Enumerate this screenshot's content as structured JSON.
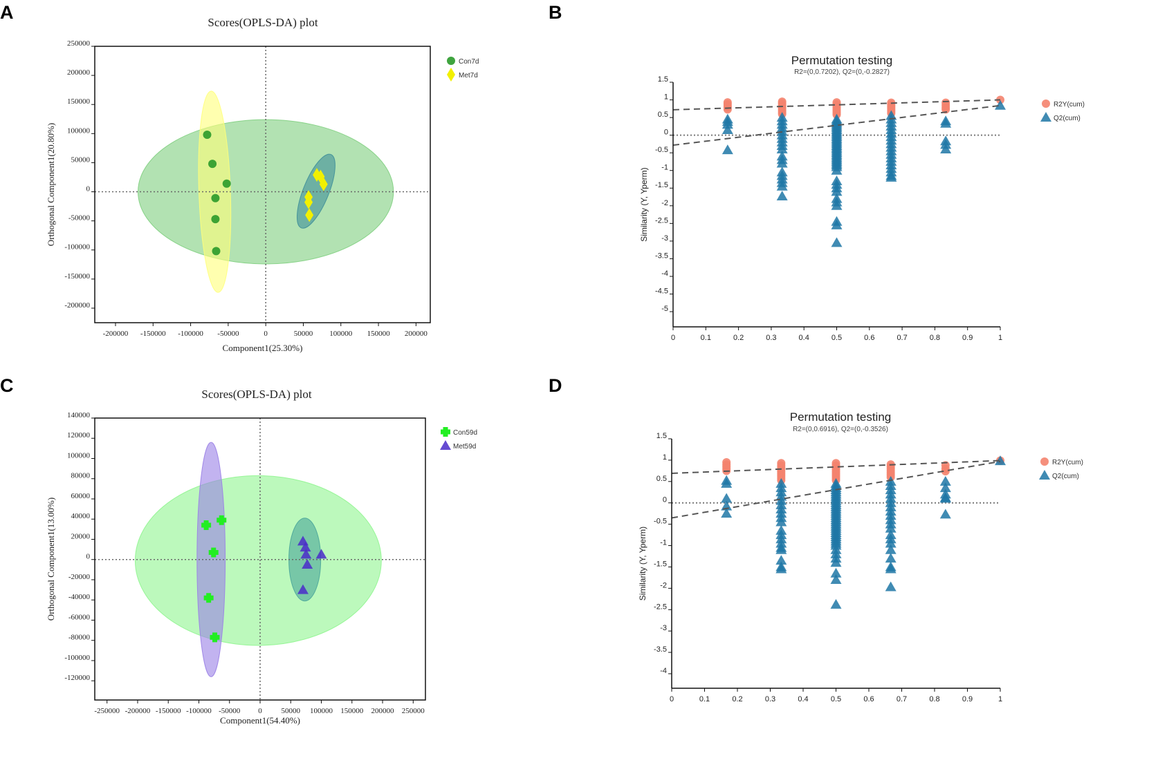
{
  "panel_labels": [
    "A",
    "B",
    "C",
    "D"
  ],
  "chart_data": [
    {
      "panel": "A",
      "type": "scatter",
      "title": "Scores(OPLS-DA) plot",
      "xlabel": "Component1(25.30%)",
      "ylabel": "Orthogonal Component1(20.80%)",
      "xlim": [
        -227600,
        219000
      ],
      "ylim": [
        -225000,
        250000
      ],
      "xticks": [
        -200000,
        -150000,
        -100000,
        -50000,
        0,
        50000,
        100000,
        150000,
        200000
      ],
      "yticks": [
        -200000,
        -150000,
        -100000,
        -50000,
        0,
        50000,
        100000,
        150000,
        200000,
        250000
      ],
      "reference_lines": {
        "x": 0,
        "y": 0,
        "style": "dotted"
      },
      "legend_position": "right",
      "ellipses": [
        {
          "cx": 0,
          "cy": 0,
          "rx": 170000,
          "ry": 124000,
          "angle_deg": 0,
          "color": "#7fcf7f"
        },
        {
          "cx": -68000,
          "cy": 0,
          "rx": 21000,
          "ry": 173000,
          "angle_deg": -2,
          "color": "#ffff7a"
        },
        {
          "cx": 67000,
          "cy": 1000,
          "rx": 17000,
          "ry": 68000,
          "angle_deg": 22,
          "color": "#3f8f99"
        }
      ],
      "series": [
        {
          "name": "Con7d",
          "marker": "circle",
          "color": "#2a9a2a",
          "points": [
            [
              -78000,
              98000
            ],
            [
              -71000,
              48000
            ],
            [
              -52000,
              14000
            ],
            [
              -67000,
              -11000
            ],
            [
              -67000,
              -47000
            ],
            [
              -66000,
              -102000
            ]
          ]
        },
        {
          "name": "Met7d",
          "marker": "diamond",
          "color": "#f2f000",
          "points": [
            [
              68000,
              29000
            ],
            [
              73000,
              26000
            ],
            [
              77000,
              13000
            ],
            [
              57000,
              -9000
            ],
            [
              57000,
              -18000
            ],
            [
              58000,
              -40000
            ]
          ]
        }
      ]
    },
    {
      "panel": "B",
      "type": "scatter",
      "title": "Permutation testing",
      "subtitle": "R2=(0,0.7202), Q2=(0,-0.2827)",
      "xlabel": "",
      "ylabel": "Similarity (Y, Yperm)",
      "xlim": [
        0,
        1
      ],
      "ylim": [
        -5.43,
        1.5
      ],
      "xticks": [
        0,
        0.1,
        0.2,
        0.3,
        0.4,
        0.5,
        0.6,
        0.7,
        0.8,
        0.9,
        1
      ],
      "yticks": [
        1.5,
        1,
        0.5,
        0,
        -0.5,
        -1,
        -1.5,
        -2,
        -2.5,
        -3,
        -3.5,
        -4,
        -4.5,
        -5
      ],
      "legend_position": "right",
      "regression_lines": [
        {
          "series": "R2Y(cum)",
          "from": [
            0,
            0.7202
          ],
          "to": [
            1,
            1.0
          ]
        },
        {
          "series": "Q2(cum)",
          "from": [
            0,
            -0.2827
          ],
          "to": [
            1,
            0.84
          ]
        }
      ],
      "series": [
        {
          "name": "R2Y(cum)",
          "marker": "circle",
          "color": "#f4836e",
          "groups": [
            {
              "x": 0.1667,
              "y": [
                0.93,
                0.88,
                0.83,
                0.78,
                0.73
              ]
            },
            {
              "x": 0.3333,
              "y": [
                0.95,
                0.9,
                0.85,
                0.8,
                0.75,
                0.7,
                0.65,
                0.6
              ]
            },
            {
              "x": 0.5,
              "y": [
                0.93,
                0.88,
                0.83,
                0.78,
                0.73,
                0.68,
                0.63,
                0.58
              ]
            },
            {
              "x": 0.6667,
              "y": [
                0.92,
                0.87,
                0.82,
                0.77,
                0.72,
                0.67,
                0.62
              ]
            },
            {
              "x": 0.8333,
              "y": [
                0.92,
                0.85,
                0.78,
                0.73
              ]
            },
            {
              "x": 1,
              "y": [
                1.0
              ]
            }
          ]
        },
        {
          "name": "Q2(cum)",
          "marker": "triangle",
          "color": "#1f77a6",
          "groups": [
            {
              "x": 0.1667,
              "y": [
                0.45,
                0.38,
                0.3,
                0.15,
                -0.42
              ]
            },
            {
              "x": 0.3333,
              "y": [
                0.5,
                0.4,
                0.3,
                0.2,
                0.1,
                0,
                -0.1,
                -0.2,
                -0.3,
                -0.4,
                -0.6,
                -0.7,
                -0.8,
                -1.05,
                -1.15,
                -1.25,
                -1.35,
                -1.45,
                -1.73
              ]
            },
            {
              "x": 0.5,
              "y": [
                0.45,
                0.4,
                0.35,
                0.3,
                0.25,
                0.2,
                0.15,
                0.1,
                0.05,
                0,
                -0.05,
                -0.1,
                -0.15,
                -0.2,
                -0.25,
                -0.3,
                -0.35,
                -0.4,
                -0.45,
                -0.5,
                -0.55,
                -0.6,
                -0.65,
                -0.7,
                -0.75,
                -0.8,
                -0.85,
                -0.9,
                -1.0,
                -1.3,
                -1.4,
                -1.5,
                -1.6,
                -1.8,
                -1.9,
                -2.0,
                -2.45,
                -2.55,
                -3.05
              ]
            },
            {
              "x": 0.6667,
              "y": [
                0.55,
                0.45,
                0.35,
                0.25,
                0.15,
                0.05,
                -0.05,
                -0.15,
                -0.25,
                -0.35,
                -0.45,
                -0.55,
                -0.65,
                -0.75,
                -0.85,
                -0.95,
                -1.05,
                -1.15,
                -1.2
              ]
            },
            {
              "x": 0.8333,
              "y": [
                0.4,
                0.33,
                -0.17,
                -0.27,
                -0.4
              ]
            },
            {
              "x": 1,
              "y": [
                0.84
              ]
            }
          ]
        }
      ]
    },
    {
      "panel": "C",
      "type": "scatter",
      "title": "Scores(OPLS-DA) plot",
      "xlabel": "Component1(54.40%)",
      "ylabel": "Orthogonal Component1(13.00%)",
      "xlim": [
        -270000,
        270000
      ],
      "ylim": [
        -139000,
        140000
      ],
      "xticks": [
        -250000,
        -200000,
        -150000,
        -100000,
        -50000,
        0,
        50000,
        100000,
        150000,
        200000,
        250000
      ],
      "yticks": [
        -120000,
        -100000,
        -80000,
        -60000,
        -40000,
        -20000,
        0,
        20000,
        40000,
        60000,
        80000,
        100000,
        120000,
        140000
      ],
      "reference_lines": {
        "x": 0,
        "y": 0,
        "style": "dotted"
      },
      "legend_position": "right",
      "ellipses": [
        {
          "cx": -3000,
          "cy": -1000,
          "rx": 201000,
          "ry": 84000,
          "angle_deg": 0,
          "color": "#8ff58f"
        },
        {
          "cx": -80000,
          "cy": 0,
          "rx": 23000,
          "ry": 116000,
          "angle_deg": 0,
          "color": "#9a80e6"
        },
        {
          "cx": 73000,
          "cy": 0,
          "rx": 26000,
          "ry": 41000,
          "angle_deg": 0,
          "color": "#4aa59a"
        }
      ],
      "series": [
        {
          "name": "Con59d",
          "marker": "cross",
          "color": "#22ee22",
          "points": [
            [
              -88000,
              34000
            ],
            [
              -63000,
              39000
            ],
            [
              -76000,
              7000
            ],
            [
              -84000,
              -38000
            ],
            [
              -74000,
              -77000
            ]
          ]
        },
        {
          "name": "Met59d",
          "marker": "triangle",
          "color": "#4a2bc9",
          "points": [
            [
              70000,
              18000
            ],
            [
              74000,
              12000
            ],
            [
              75000,
              5000
            ],
            [
              100000,
              5000
            ],
            [
              77000,
              -5000
            ],
            [
              70000,
              -30000
            ]
          ]
        }
      ]
    },
    {
      "panel": "D",
      "type": "scatter",
      "title": "Permutation testing",
      "subtitle": "R2=(0,0.6916), Q2=(0,-0.3526)",
      "xlabel": "",
      "ylabel": "Similarity (Y, Yperm)",
      "xlim": [
        0,
        1
      ],
      "ylim": [
        -4.34,
        1.5
      ],
      "xticks": [
        0,
        0.1,
        0.2,
        0.3,
        0.4,
        0.5,
        0.6,
        0.7,
        0.8,
        0.9,
        1
      ],
      "yticks": [
        1.5,
        1,
        0.5,
        0,
        -0.5,
        -1,
        -1.5,
        -2,
        -2.5,
        -3,
        -3.5,
        -4
      ],
      "legend_position": "right",
      "regression_lines": [
        {
          "series": "R2Y(cum)",
          "from": [
            0,
            0.6916
          ],
          "to": [
            1,
            0.99
          ]
        },
        {
          "series": "Q2(cum)",
          "from": [
            0,
            -0.3526
          ],
          "to": [
            1,
            0.97
          ]
        }
      ],
      "series": [
        {
          "name": "R2Y(cum)",
          "marker": "circle",
          "color": "#f4836e",
          "groups": [
            {
              "x": 0.1667,
              "y": [
                0.95,
                0.9,
                0.85,
                0.8,
                0.75
              ]
            },
            {
              "x": 0.3333,
              "y": [
                0.93,
                0.88,
                0.83,
                0.78,
                0.73,
                0.68,
                0.63,
                0.58,
                0.53
              ]
            },
            {
              "x": 0.5,
              "y": [
                0.93,
                0.88,
                0.83,
                0.78,
                0.73,
                0.68,
                0.63,
                0.58,
                0.53
              ]
            },
            {
              "x": 0.6667,
              "y": [
                0.9,
                0.85,
                0.8,
                0.75,
                0.7,
                0.65,
                0.6
              ]
            },
            {
              "x": 0.8333,
              "y": [
                0.88,
                0.8,
                0.74
              ]
            },
            {
              "x": 1,
              "y": [
                0.99
              ]
            }
          ]
        },
        {
          "name": "Q2(cum)",
          "marker": "triangle",
          "color": "#1f77a6",
          "groups": [
            {
              "x": 0.1667,
              "y": [
                0.52,
                0.45,
                0.1,
                -0.08,
                -0.25
              ]
            },
            {
              "x": 0.3333,
              "y": [
                0.45,
                0.35,
                0.25,
                0.15,
                0.05,
                -0.05,
                -0.15,
                -0.25,
                -0.35,
                -0.45,
                -0.65,
                -0.75,
                -0.85,
                -0.95,
                -1.05,
                -1.1,
                -1.35,
                -1.5,
                -1.55
              ]
            },
            {
              "x": 0.5,
              "y": [
                0.45,
                0.4,
                0.35,
                0.3,
                0.25,
                0.2,
                0.15,
                0.1,
                0.05,
                0,
                -0.05,
                -0.1,
                -0.15,
                -0.2,
                -0.25,
                -0.3,
                -0.35,
                -0.4,
                -0.45,
                -0.5,
                -0.55,
                -0.6,
                -0.65,
                -0.7,
                -0.75,
                -0.8,
                -0.85,
                -0.9,
                -0.95,
                -1.0,
                -1.1,
                -1.2,
                -1.3,
                -1.4,
                -1.65,
                -1.8,
                -2.38
              ]
            },
            {
              "x": 0.6667,
              "y": [
                0.5,
                0.4,
                0.3,
                0.2,
                0.1,
                0,
                -0.1,
                -0.2,
                -0.3,
                -0.4,
                -0.5,
                -0.6,
                -0.75,
                -0.85,
                -0.95,
                -1.1,
                -1.3,
                -1.5,
                -1.55,
                -1.97
              ]
            },
            {
              "x": 0.8333,
              "y": [
                0.5,
                0.35,
                0.2,
                0.12,
                0.1,
                -0.27
              ]
            },
            {
              "x": 1,
              "y": [
                0.98
              ]
            }
          ]
        }
      ]
    }
  ]
}
